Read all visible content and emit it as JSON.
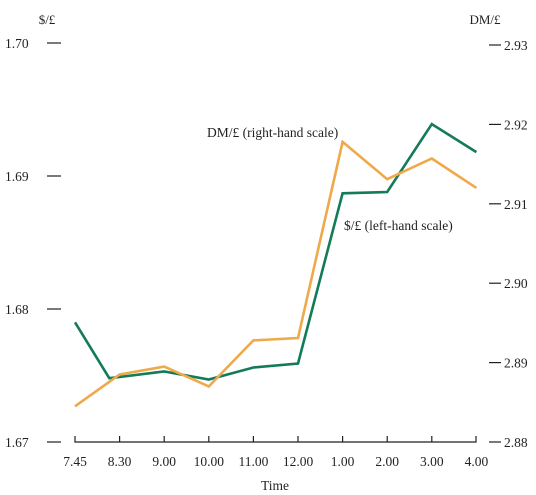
{
  "chart_data": {
    "type": "line",
    "title": "",
    "xlabel": "Time",
    "y_left_unit": "$/£",
    "y_right_unit": "DM/£",
    "categories": [
      "7.45",
      "8.30",
      "9.00",
      "10.00",
      "11.00",
      "12.00",
      "1.00",
      "2.00",
      "3.00",
      "4.00"
    ],
    "y_left": {
      "ylim": [
        1.67,
        1.7
      ],
      "ticks": [
        "1.67",
        "1.68",
        "1.69",
        "1.70"
      ]
    },
    "y_right": {
      "ylim": [
        2.88,
        2.93
      ],
      "ticks": [
        "2.88",
        "2.89",
        "2.90",
        "2.91",
        "2.92",
        "2.93"
      ]
    },
    "series": [
      {
        "name": "$/£ (left-hand scale)",
        "axis": "left",
        "color": "#137c57",
        "x": [
          0,
          0.77,
          2,
          3,
          4,
          5,
          6,
          7,
          8,
          9
        ],
        "values": [
          1.679,
          1.6748,
          1.6753,
          1.6747,
          1.6756,
          1.6759,
          1.6887,
          1.6888,
          1.6939,
          1.6918
        ]
      },
      {
        "name": "DM/£ (right-hand scale)",
        "axis": "right",
        "color": "#f0a94a",
        "x": [
          0,
          1,
          2,
          3,
          4,
          5,
          6,
          7,
          8,
          9
        ],
        "values": [
          2.8845,
          2.8885,
          2.8895,
          2.887,
          2.8928,
          2.8931,
          2.9178,
          2.9131,
          2.9157,
          2.912
        ]
      }
    ],
    "annotations": [
      "DM/£ (right-hand scale)",
      "$/£ (left-hand scale)"
    ],
    "grid": false,
    "legend": "none"
  }
}
